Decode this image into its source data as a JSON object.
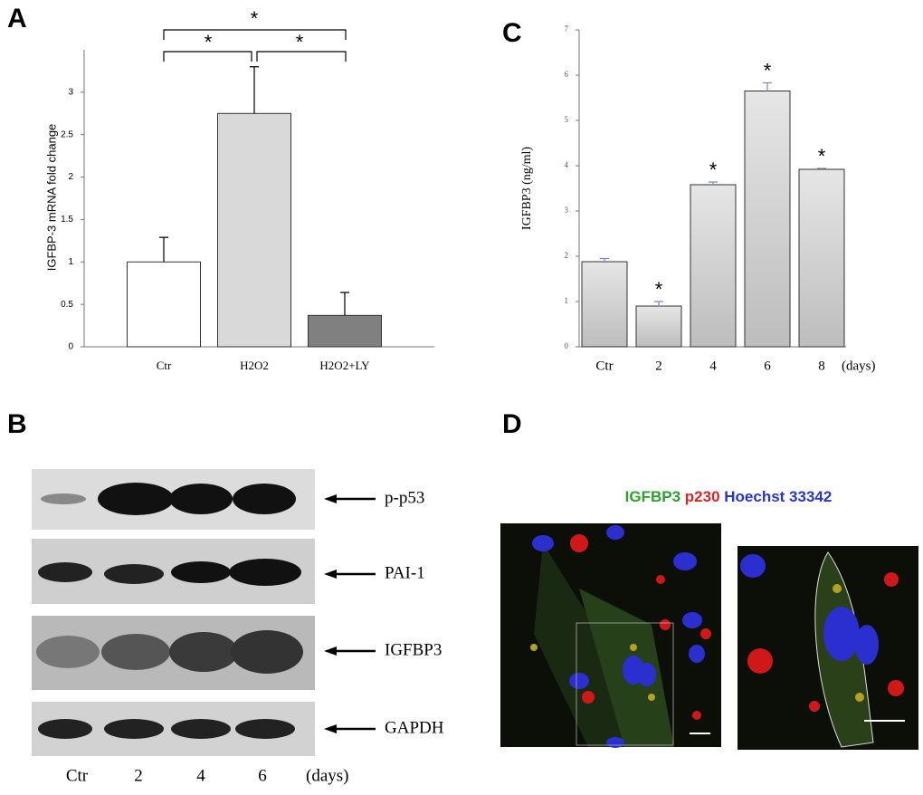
{
  "chart_data": [
    {
      "type": "bar",
      "panel": "A",
      "y_label": "IGFBP-3 mRNA fold change",
      "categories": [
        "Ctr",
        "H2O2",
        "H2O2+LY"
      ],
      "values": [
        1.0,
        2.75,
        0.37
      ],
      "errors": [
        0.29,
        0.55,
        0.27
      ],
      "colors": [
        "#ffffff",
        "#d9d9d9",
        "#808080"
      ],
      "ylim": [
        0,
        3.5
      ],
      "yticks": [
        0,
        0.5,
        1,
        1.5,
        2,
        2.5,
        3
      ],
      "annotations": [
        "*",
        "*",
        "*"
      ]
    },
    {
      "type": "bar",
      "panel": "C",
      "y_label": "IGFBP3 (ng/ml)",
      "x_label": "(days)",
      "categories": [
        "Ctr",
        "2",
        "4",
        "6",
        "8"
      ],
      "values": [
        1.88,
        0.9,
        3.58,
        5.65,
        3.92
      ],
      "errors": [
        0.07,
        0.1,
        0.06,
        0.18,
        0.02
      ],
      "color": "#d6d6d6",
      "ylim": [
        0,
        7
      ],
      "yticks": [
        0,
        1,
        2,
        3,
        4,
        5,
        6,
        7
      ],
      "annotations": [
        "*",
        "*",
        "*",
        "*"
      ]
    }
  ],
  "blot": {
    "panel": "B",
    "labels": [
      "p-p53",
      "PAI-1",
      "IGFBP3",
      "GAPDH"
    ],
    "lanes": [
      "Ctr",
      "2",
      "4",
      "6"
    ],
    "lanes_unit": "(days)"
  },
  "staining": {
    "panel": "D",
    "title_parts": [
      "IGFBP3",
      "p230",
      "Hoechst 33342"
    ]
  }
}
